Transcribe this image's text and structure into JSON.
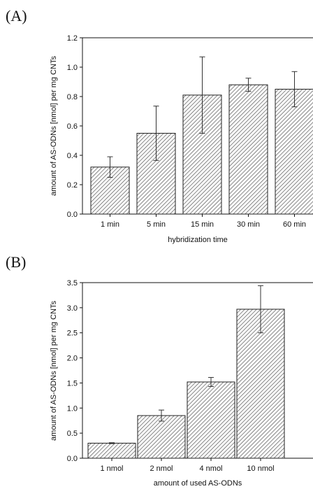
{
  "chart_data": [
    {
      "type": "bar",
      "panel_label": "(A)",
      "categories": [
        "1 min",
        "5 min",
        "15 min",
        "30 min",
        "60 min"
      ],
      "values": [
        0.32,
        0.55,
        0.81,
        0.88,
        0.85
      ],
      "errors": [
        0.07,
        0.185,
        0.26,
        0.045,
        0.12
      ],
      "xlabel": "hybridization time",
      "ylabel": "amount of AS-ODNs [nmol] per mg CNTs",
      "ylim": [
        0,
        1.2
      ],
      "yticks": [
        "0.0",
        "0.2",
        "0.4",
        "0.6",
        "0.8",
        "1.0",
        "1.2"
      ],
      "grid": false,
      "bar_pattern": "diagonal-hatch"
    },
    {
      "type": "bar",
      "panel_label": "(B)",
      "categories": [
        "1 nmol",
        "2 nmol",
        "4 nmol",
        "10 nmol"
      ],
      "values": [
        0.3,
        0.85,
        1.52,
        2.97
      ],
      "errors": [
        0.01,
        0.11,
        0.09,
        0.47
      ],
      "xlabel": "amount of used AS-ODNs",
      "ylabel": "amount of AS-ODNs [nmol] per mg CNTs",
      "ylim": [
        0,
        3.5
      ],
      "yticks": [
        "0.0",
        "0.5",
        "1.0",
        "1.5",
        "2.0",
        "2.5",
        "3.0",
        "3.5"
      ],
      "grid": false,
      "bar_pattern": "diagonal-hatch"
    }
  ]
}
